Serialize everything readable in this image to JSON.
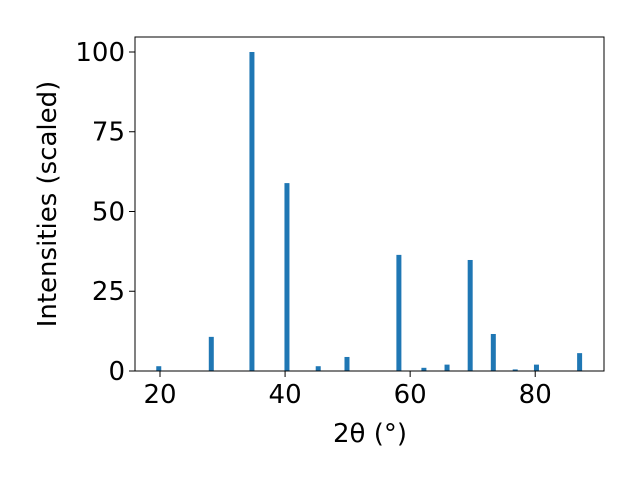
{
  "chart_data": {
    "type": "bar",
    "x_label": "2θ (°)",
    "y_label": "Intensities (scaled)",
    "x": [
      19.8,
      28.2,
      34.7,
      40.3,
      45.3,
      49.9,
      58.2,
      62.2,
      65.9,
      69.6,
      73.3,
      76.8,
      80.2,
      87.1
    ],
    "values": [
      1.5,
      10.7,
      100,
      58.9,
      1.5,
      4.4,
      36.4,
      1,
      2,
      34.8,
      11.6,
      0.5,
      2,
      5.6
    ],
    "color": "#1f77b4",
    "xlim": [
      16,
      91
    ],
    "xticks": [
      20,
      40,
      60,
      80
    ],
    "ylim": [
      0,
      104.7
    ],
    "yticks": [
      0,
      25,
      50,
      75,
      100
    ]
  }
}
